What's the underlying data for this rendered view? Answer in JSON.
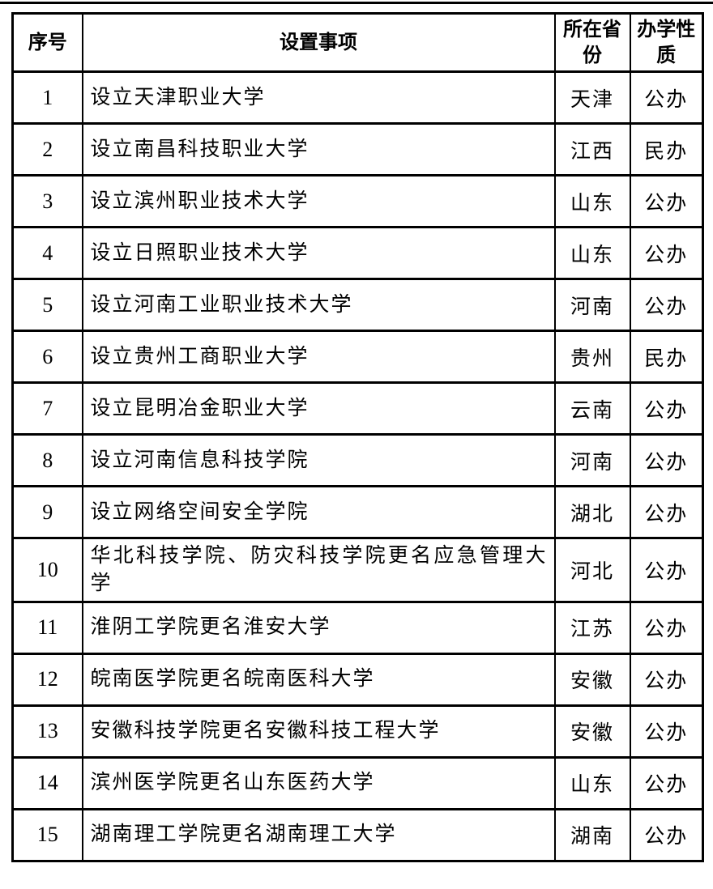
{
  "table": {
    "headers": {
      "no": "序号",
      "item": "设置事项",
      "province": "所在省份",
      "nature": "办学性质"
    },
    "rows": [
      {
        "no": "1",
        "item": "设立天津职业大学",
        "province": "天津",
        "nature": "公办"
      },
      {
        "no": "2",
        "item": "设立南昌科技职业大学",
        "province": "江西",
        "nature": "民办"
      },
      {
        "no": "3",
        "item": "设立滨州职业技术大学",
        "province": "山东",
        "nature": "公办"
      },
      {
        "no": "4",
        "item": "设立日照职业技术大学",
        "province": "山东",
        "nature": "公办"
      },
      {
        "no": "5",
        "item": "设立河南工业职业技术大学",
        "province": "河南",
        "nature": "公办"
      },
      {
        "no": "6",
        "item": "设立贵州工商职业大学",
        "province": "贵州",
        "nature": "民办"
      },
      {
        "no": "7",
        "item": "设立昆明冶金职业大学",
        "province": "云南",
        "nature": "公办"
      },
      {
        "no": "8",
        "item": "设立河南信息科技学院",
        "province": "河南",
        "nature": "公办"
      },
      {
        "no": "9",
        "item": "设立网络空间安全学院",
        "province": "湖北",
        "nature": "公办"
      },
      {
        "no": "10",
        "item": "华北科技学院、防灾科技学院更名应急管理大学",
        "province": "河北",
        "nature": "公办"
      },
      {
        "no": "11",
        "item": "淮阴工学院更名淮安大学",
        "province": "江苏",
        "nature": "公办"
      },
      {
        "no": "12",
        "item": "皖南医学院更名皖南医科大学",
        "province": "安徽",
        "nature": "公办"
      },
      {
        "no": "13",
        "item": "安徽科技学院更名安徽科技工程大学",
        "province": "安徽",
        "nature": "公办"
      },
      {
        "no": "14",
        "item": "滨州医学院更名山东医药大学",
        "province": "山东",
        "nature": "公办"
      },
      {
        "no": "15",
        "item": "湖南理工学院更名湖南理工大学",
        "province": "湖南",
        "nature": "公办"
      }
    ]
  },
  "colors": {
    "border": "#000000",
    "text": "#000000",
    "background": "#ffffff"
  }
}
